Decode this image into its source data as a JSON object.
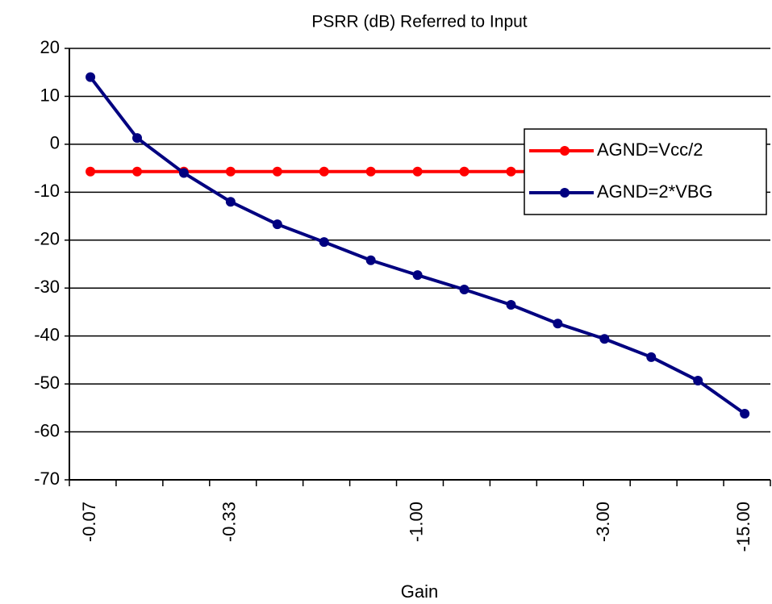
{
  "chart_data": {
    "type": "line",
    "title": "PSRR (dB) Referred to Input",
    "x_label": "Gain",
    "categories": [
      "-0.07",
      null,
      null,
      "-0.33",
      null,
      null,
      null,
      "-1.00",
      null,
      null,
      null,
      "-3.00",
      null,
      null,
      "-15.00"
    ],
    "series": [
      {
        "name": "AGND=Vcc/2",
        "color": "#ff0000",
        "values": [
          -5.7,
          -5.7,
          -5.7,
          -5.7,
          -5.7,
          -5.7,
          -5.7,
          -5.7,
          -5.7,
          -5.7,
          -5.7,
          -5.7,
          -5.7,
          -5.7,
          -5.7
        ]
      },
      {
        "name": "AGND=2*VBG",
        "color": "#000080",
        "values": [
          14,
          1.3,
          -6,
          -12,
          -16.7,
          -20.4,
          -24.2,
          -27.3,
          -30.3,
          -33.5,
          -37.4,
          -40.6,
          -44.4,
          -49.3,
          -56.2
        ]
      }
    ],
    "ylim": [
      -70,
      20
    ],
    "yticks": [
      -70,
      -60,
      -50,
      -40,
      -30,
      -20,
      -10,
      0,
      10,
      20
    ],
    "grid": true,
    "legend": "right"
  }
}
